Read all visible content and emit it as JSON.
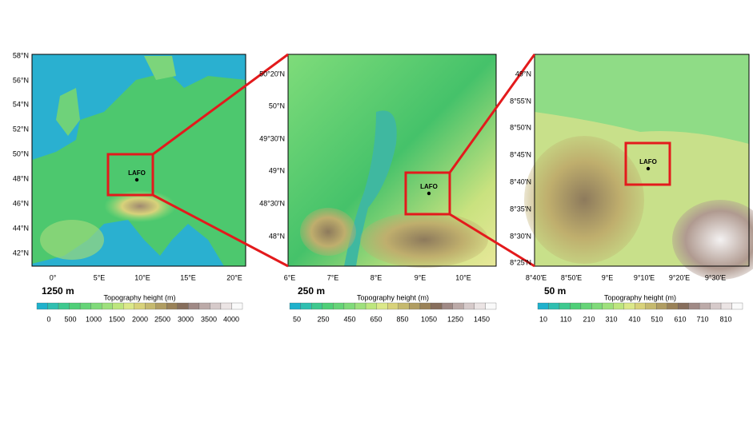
{
  "panels": [
    {
      "resolution": "1250 m",
      "site": "LAFO",
      "lat_labels": [
        "58°N",
        "56°N",
        "54°N",
        "52°N",
        "50°N",
        "48°N",
        "46°N",
        "44°N",
        "42°N"
      ],
      "lon_labels": [
        "0°",
        "5°E",
        "10°E",
        "15°E",
        "20°E"
      ],
      "colorbar": {
        "title": "Topography height  (m)",
        "ticks": [
          0,
          500,
          1000,
          1500,
          2000,
          2500,
          3000,
          3500,
          4000
        ]
      }
    },
    {
      "resolution": "250 m",
      "site": "LAFO",
      "lat_labels": [
        "50°20'N",
        "50°N",
        "49°30'N",
        "49°N",
        "48°30'N",
        "48°N"
      ],
      "lon_labels": [
        "6°E",
        "7°E",
        "8°E",
        "9°E",
        "10°E"
      ],
      "colorbar": {
        "title": "Topography height  (m)",
        "ticks": [
          50,
          250,
          450,
          650,
          850,
          1050,
          1250,
          1450
        ]
      }
    },
    {
      "resolution": "50 m",
      "site": "LAFO",
      "lat_labels": [
        "49°N",
        "8°55'N",
        "8°50'N",
        "8°45'N",
        "8°40'N",
        "8°35'N",
        "8°30'N",
        "8°25'N"
      ],
      "lon_labels": [
        "8°40'E",
        "8°50'E",
        "9°E",
        "9°10'E",
        "9°20'E",
        "9°30'E"
      ],
      "colorbar": {
        "title": "Topography height  (m)",
        "ticks": [
          10,
          110,
          210,
          310,
          410,
          510,
          610,
          710,
          810
        ]
      }
    }
  ]
}
